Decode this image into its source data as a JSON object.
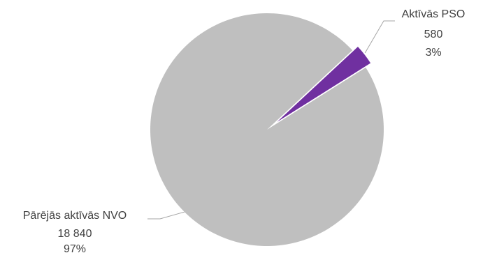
{
  "chart_data": {
    "type": "pie",
    "title": "",
    "legend": "none",
    "slices": [
      {
        "label": "Aktīvās PSO",
        "value": 580,
        "value_label": "580",
        "percent_label": "3%",
        "color": "#7030A0",
        "exploded": true
      },
      {
        "label": "Pārējās aktīvās NVO",
        "value": 18840,
        "value_label": "18 840",
        "percent_label": "97%",
        "color": "#BFBFBF",
        "exploded": false
      }
    ],
    "leader_line_color": "#A6A6A6"
  }
}
